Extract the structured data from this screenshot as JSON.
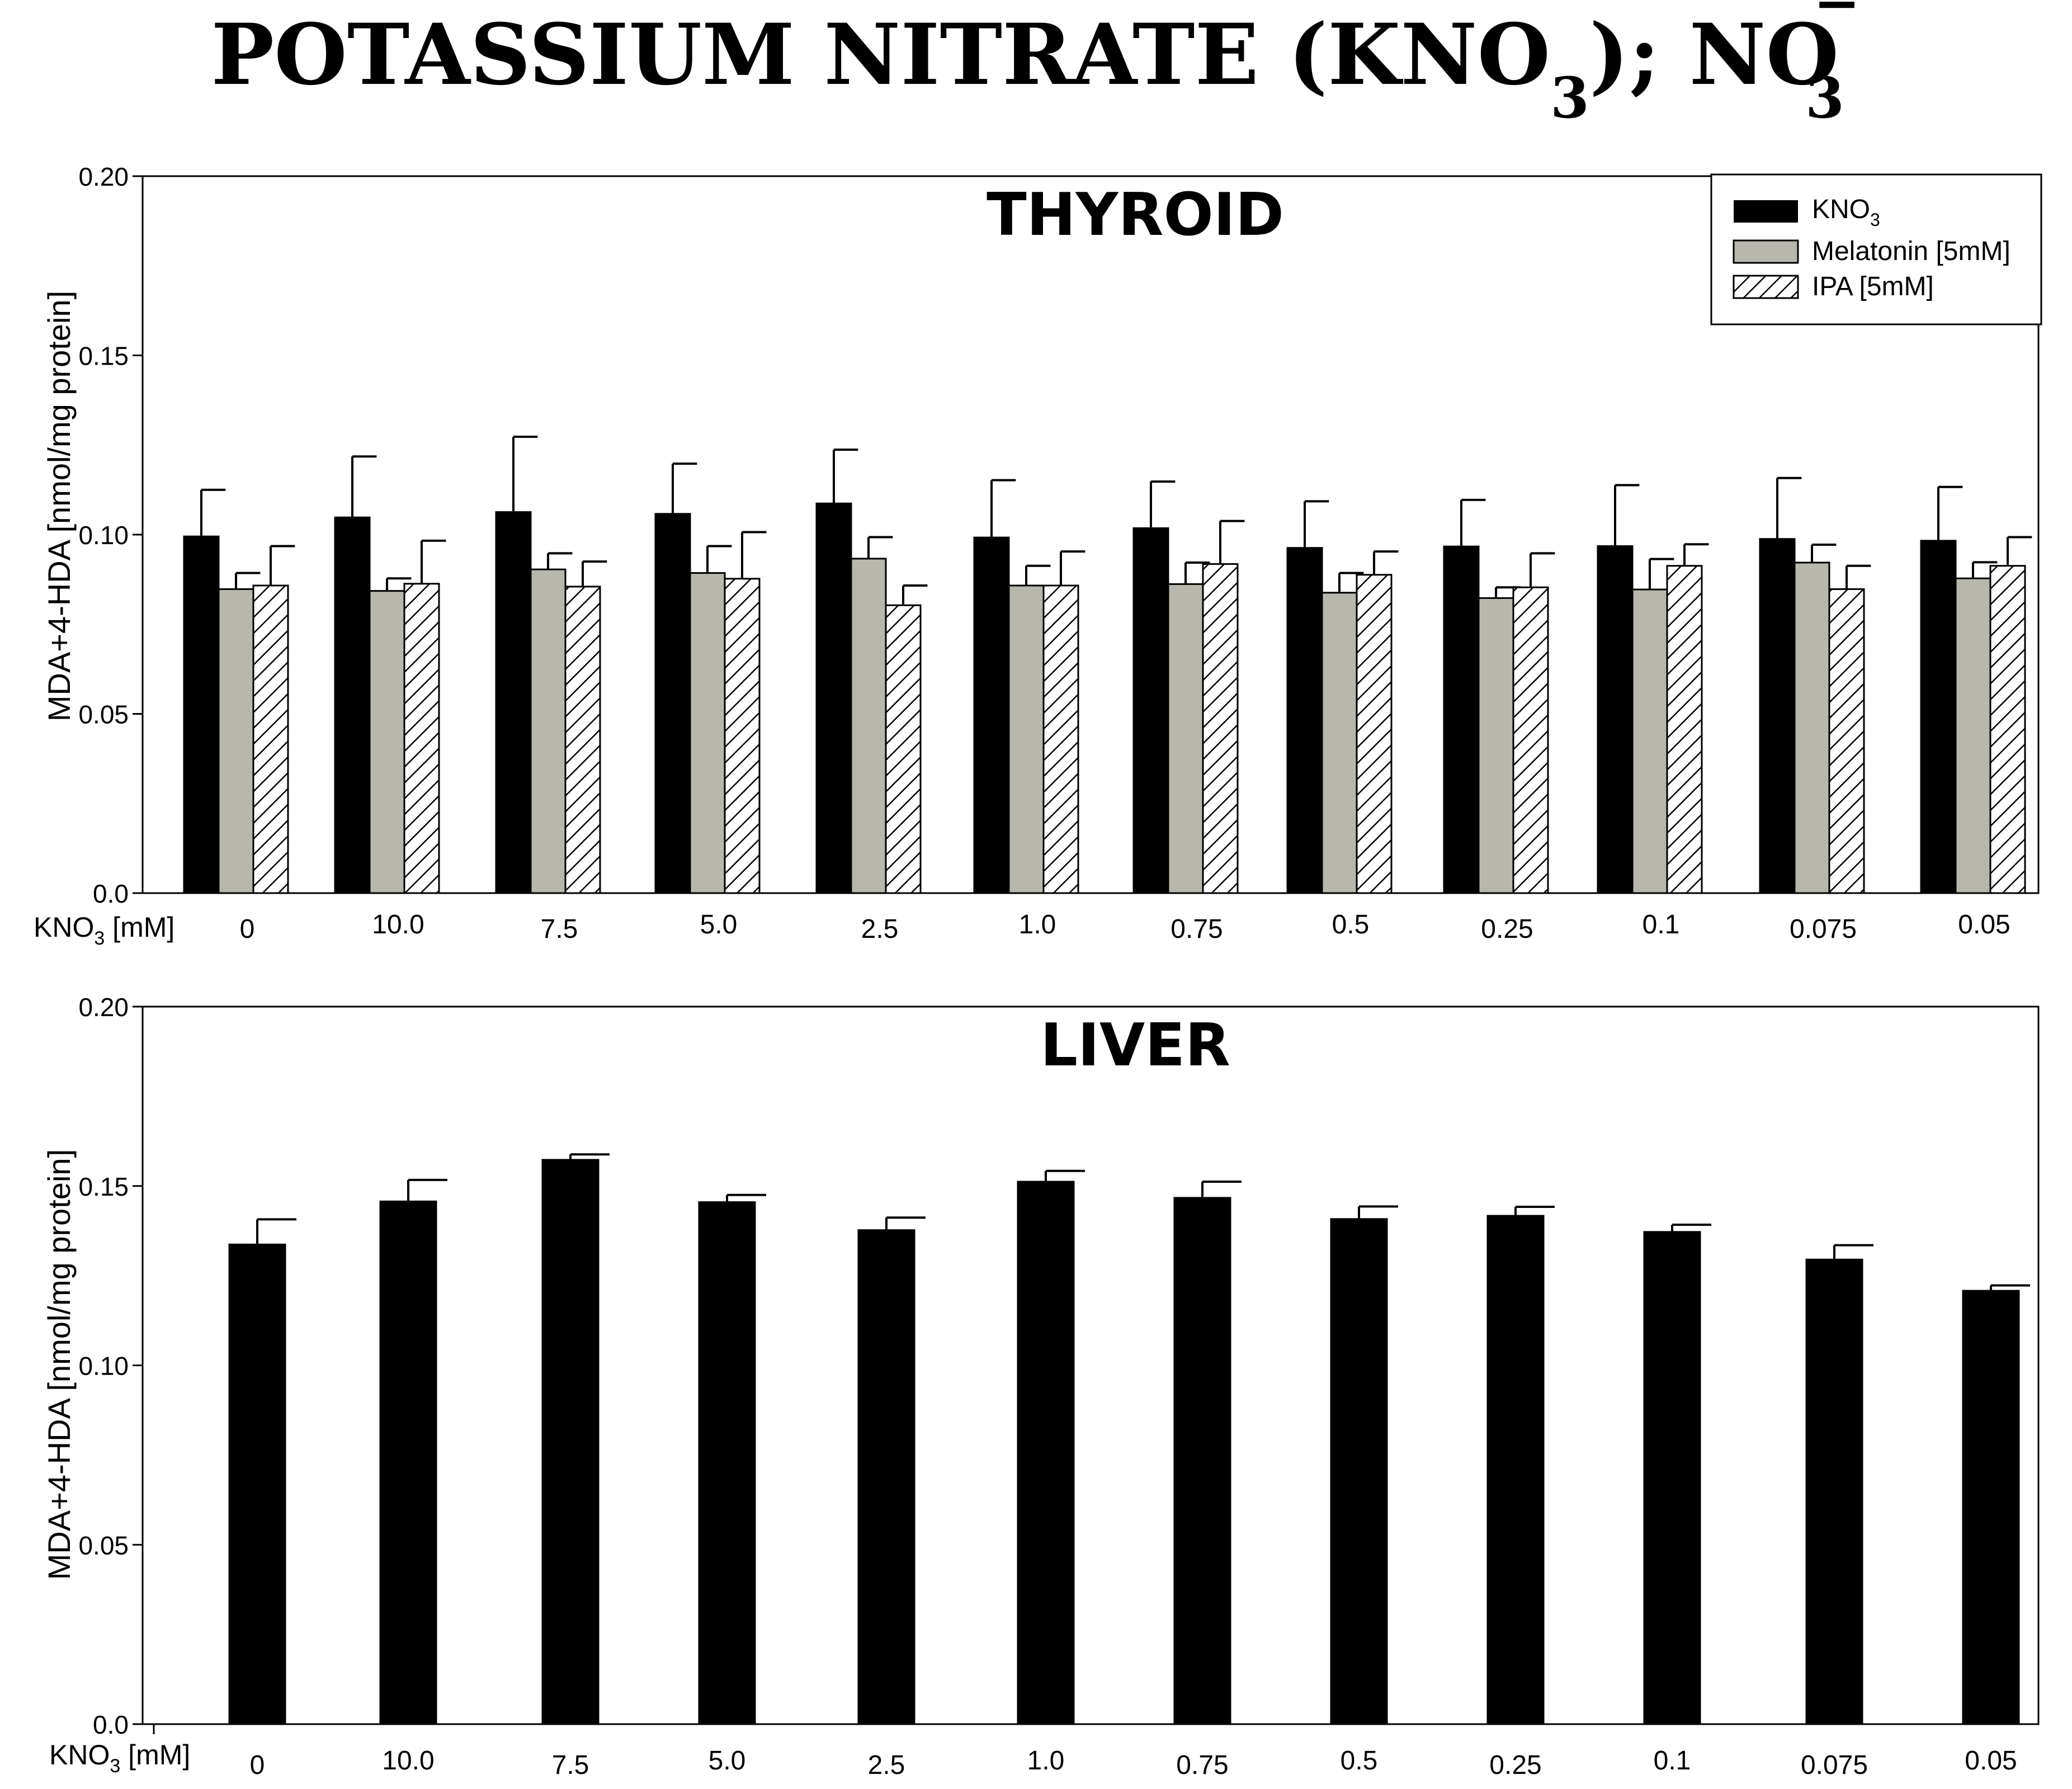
{
  "figure": {
    "title": "POTASSIUM NITRATE (KNO",
    "title_sub": "3",
    "title_mid": "); NO",
    "title_sub2": "3",
    "title_sup": "−"
  },
  "legend": {
    "items": [
      {
        "label": "KNO",
        "sub": "3",
        "style": "solid",
        "color": "#000000"
      },
      {
        "label": "Melatonin [5mM]",
        "sub": "",
        "style": "grey",
        "color": "#b7b7ad"
      },
      {
        "label": "IPA [5mM]",
        "sub": "",
        "style": "hatch",
        "color": "#ffffff"
      }
    ]
  },
  "x_axis_label": {
    "text": "KNO",
    "sub": "3",
    "unit": " [mM]"
  },
  "colors": {
    "kno3": "#000000",
    "melatonin": "#b7b7ad",
    "ipa_bg": "#ffffff",
    "axis": "#000000"
  },
  "chart_data": [
    {
      "type": "bar",
      "title": "THYROID",
      "ylabel": "MDA+4-HDA [nmol/mg protein]",
      "ylim": [
        0,
        0.2
      ],
      "yticks": [
        "0.0",
        "0.05",
        "0.10",
        "0.15",
        "0.20"
      ],
      "ytick_values": [
        0,
        0.05,
        0.1,
        0.15,
        0.2
      ],
      "categories": [
        "0",
        "10.0",
        "7.5",
        "5.0",
        "2.5",
        "1.0",
        "0.75",
        "0.5",
        "0.25",
        "0.1",
        "0.075",
        "0.05"
      ],
      "series": [
        {
          "name": "KNO3",
          "style": "solid",
          "values": [
            0.0995,
            0.1048,
            0.1063,
            0.1058,
            0.1087,
            0.0992,
            0.1018,
            0.0963,
            0.0967,
            0.0968,
            0.0988,
            0.0983
          ],
          "errors": [
            0.013,
            0.017,
            0.021,
            0.014,
            0.015,
            0.016,
            0.013,
            0.013,
            0.013,
            0.017,
            0.017,
            0.015
          ]
        },
        {
          "name": "Melatonin [5mM]",
          "style": "grey",
          "values": [
            0.0848,
            0.0843,
            0.0903,
            0.0893,
            0.0933,
            0.0858,
            0.0862,
            0.0838,
            0.0823,
            0.0847,
            0.0922,
            0.0878
          ],
          "errors": [
            0.0045,
            0.0035,
            0.0045,
            0.0075,
            0.006,
            0.0055,
            0.006,
            0.0055,
            0.003,
            0.0085,
            0.005,
            0.0045
          ]
        },
        {
          "name": "IPA [5mM]",
          "style": "hatch",
          "values": [
            0.0858,
            0.0863,
            0.0855,
            0.0877,
            0.0803,
            0.0858,
            0.0918,
            0.0888,
            0.0853,
            0.0913,
            0.0848,
            0.0913
          ],
          "errors": [
            0.011,
            0.012,
            0.007,
            0.013,
            0.0055,
            0.0095,
            0.012,
            0.0065,
            0.0095,
            0.006,
            0.0065,
            0.008
          ]
        }
      ]
    },
    {
      "type": "bar",
      "title": "LIVER",
      "ylabel": "MDA+4-HDA [nmol/mg protein]",
      "ylim": [
        0,
        0.2
      ],
      "yticks": [
        "0.0",
        "0.05",
        "0.10",
        "0.15",
        "0.20"
      ],
      "ytick_values": [
        0,
        0.05,
        0.1,
        0.15,
        0.2
      ],
      "categories": [
        "0",
        "10.0",
        "7.5",
        "5.0",
        "2.5",
        "1.0",
        "0.75",
        "0.5",
        "0.25",
        "0.1",
        "0.075",
        "0.05"
      ],
      "series": [
        {
          "name": "KNO3",
          "style": "solid",
          "values": [
            0.1337,
            0.1457,
            0.1573,
            0.1455,
            0.1377,
            0.1512,
            0.1467,
            0.1408,
            0.1417,
            0.1372,
            0.1295,
            0.1208
          ],
          "errors": [
            0.007,
            0.006,
            0.0015,
            0.002,
            0.0035,
            0.003,
            0.0045,
            0.0035,
            0.0025,
            0.002,
            0.004,
            0.0015
          ]
        }
      ]
    }
  ]
}
